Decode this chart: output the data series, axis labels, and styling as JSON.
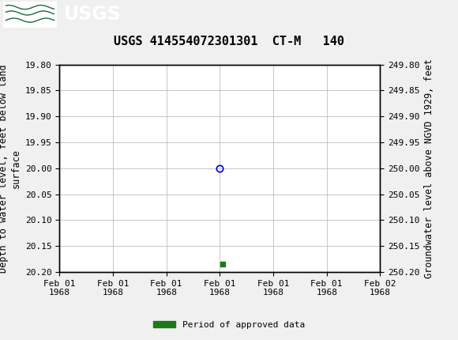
{
  "title": "USGS 414554072301301  CT-M   140",
  "ylabel_left": "Depth to water level, feet below land\nsurface",
  "ylabel_right": "Groundwater level above NGVD 1929, feet",
  "ylim_left": [
    19.8,
    20.2
  ],
  "ylim_right": [
    249.8,
    250.2
  ],
  "left_yticks": [
    19.8,
    19.85,
    19.9,
    19.95,
    20.0,
    20.05,
    20.1,
    20.15,
    20.2
  ],
  "right_yticks": [
    249.8,
    249.85,
    249.9,
    249.95,
    250.0,
    250.05,
    250.1,
    250.15,
    250.2
  ],
  "right_ytick_labels": [
    "249.80",
    "249.85",
    "249.90",
    "249.95",
    "250.00",
    "250.05",
    "250.10",
    "250.15",
    "250.20"
  ],
  "xlim": [
    0,
    6
  ],
  "xtick_labels": [
    "Feb 01\n1968",
    "Feb 01\n1968",
    "Feb 01\n1968",
    "Feb 01\n1968",
    "Feb 01\n1968",
    "Feb 01\n1968",
    "Feb 02\n1968"
  ],
  "data_point_x": 3.0,
  "data_point_y": 20.0,
  "data_point_color": "#0000cc",
  "green_marker_x": 3.05,
  "green_marker_y": 20.185,
  "green_color": "#1a7a1a",
  "header_bg_color": "#1a6b3c",
  "header_text_color": "#ffffff",
  "grid_color": "#b0b0b0",
  "background_color": "#f0f0f0",
  "plot_bg_color": "#ffffff",
  "legend_label": "Period of approved data",
  "title_fontsize": 11,
  "axis_label_fontsize": 8.5,
  "tick_fontsize": 8,
  "font_family": "monospace"
}
